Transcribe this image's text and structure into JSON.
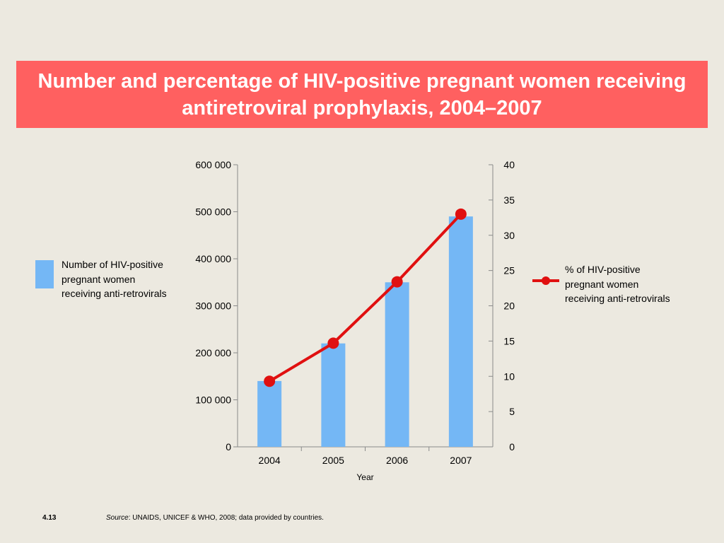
{
  "slide": {
    "title_line1": "Number and percentage of HIV-positive pregnant women receiving",
    "title_line2": "antiretroviral prophylaxis, 2004–2007",
    "slide_number": "4.13",
    "source_label": "Source",
    "source_text": ": UNAIDS, UNICEF & WHO, 2008; data provided by countries."
  },
  "colors": {
    "banner": "#ff6060",
    "bar": "#74b7f5",
    "line": "#e01010",
    "background": "#ece9e0"
  },
  "chart_data": {
    "type": "bar+line",
    "title": "Number and percentage of HIV-positive pregnant women receiving antiretroviral prophylaxis, 2004–2007",
    "xlabel": "Year",
    "categories": [
      "2004",
      "2005",
      "2006",
      "2007"
    ],
    "series": [
      {
        "name": "Number of HIV-positive pregnant women receiving anti-retrovirals",
        "type": "bar",
        "axis": "left",
        "values": [
          140000,
          220000,
          350000,
          490000
        ]
      },
      {
        "name": "% of HIV-positive pregnant women receiving anti-retrovirals",
        "type": "line",
        "axis": "right",
        "values": [
          9.3,
          14.7,
          23.4,
          33
        ]
      }
    ],
    "left_axis": {
      "ylim": [
        0,
        600000
      ],
      "ticks": [
        0,
        100000,
        200000,
        300000,
        400000,
        500000,
        600000
      ],
      "tick_labels": [
        "0",
        "100 000",
        "200 000",
        "300 000",
        "400 000",
        "500 000",
        "600 000"
      ]
    },
    "right_axis": {
      "ylim": [
        0,
        40
      ],
      "ticks": [
        0,
        5,
        10,
        15,
        20,
        25,
        30,
        35,
        40
      ],
      "tick_labels": [
        "0",
        "5",
        "10",
        "15",
        "20",
        "25",
        "30",
        "35",
        "40"
      ]
    },
    "legend": {
      "bar_label_lines": [
        "Number of HIV-positive",
        "pregnant women",
        "receiving anti-retrovirals"
      ],
      "line_label_lines": [
        "% of HIV-positive",
        "pregnant women",
        "receiving anti-retrovirals"
      ]
    }
  }
}
